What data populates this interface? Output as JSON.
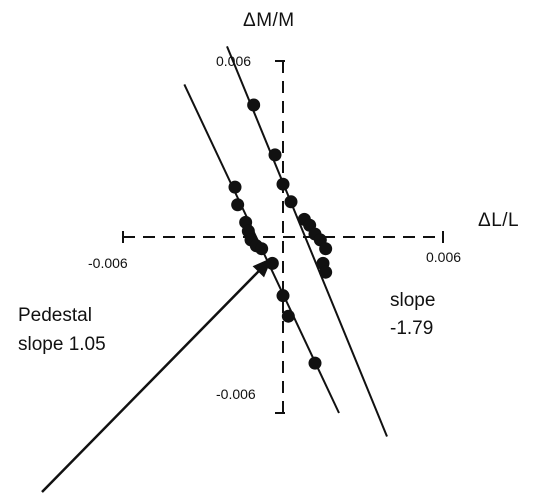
{
  "chart_data": {
    "type": "scatter",
    "xlabel": "ΔL/L",
    "ylabel": "ΔM/M",
    "xlim": [
      -0.006,
      0.006
    ],
    "ylim": [
      -0.006,
      0.006
    ],
    "x_ticks": [
      "-0.006",
      "0.006"
    ],
    "y_ticks": [
      "0.006",
      "-0.006"
    ],
    "grid": false,
    "axes_style": "dashed, crossing at origin",
    "series": [
      {
        "fit_slope": -1.79,
        "points": [
          {
            "x": -0.0011,
            "y": 0.0045
          },
          {
            "x": -0.0003,
            "y": 0.0028
          },
          {
            "x": 0.0,
            "y": 0.0018
          },
          {
            "x": 0.0003,
            "y": 0.0012
          },
          {
            "x": 0.0008,
            "y": 0.0006
          },
          {
            "x": 0.001,
            "y": 0.0004
          },
          {
            "x": 0.0012,
            "y": 0.0001
          },
          {
            "x": 0.0014,
            "y": -0.0001
          },
          {
            "x": 0.0016,
            "y": -0.0004
          },
          {
            "x": 0.0015,
            "y": -0.0009
          },
          {
            "x": 0.0016,
            "y": -0.0012
          }
        ],
        "fit_line": [
          {
            "x": -0.0021,
            "y": 0.0065
          },
          {
            "x": 0.0039,
            "y": -0.0068
          }
        ]
      },
      {
        "fit_slope": 1.05,
        "points": [
          {
            "x": -0.0018,
            "y": 0.0017
          },
          {
            "x": -0.0017,
            "y": 0.0011
          },
          {
            "x": -0.0014,
            "y": 0.0005
          },
          {
            "x": -0.0013,
            "y": 0.0002
          },
          {
            "x": -0.0012,
            "y": -0.0001
          },
          {
            "x": -0.001,
            "y": -0.0003
          },
          {
            "x": -0.0008,
            "y": -0.0004
          },
          {
            "x": -0.0004,
            "y": -0.0009
          },
          {
            "x": 0.0,
            "y": -0.002
          },
          {
            "x": 0.0002,
            "y": -0.0027
          },
          {
            "x": 0.0012,
            "y": -0.0043
          }
        ],
        "fit_line": [
          {
            "x": -0.0037,
            "y": 0.0052
          },
          {
            "x": 0.0021,
            "y": -0.006
          }
        ]
      }
    ],
    "annotations": [
      {
        "id": "pedestal",
        "lines": [
          "Pedestal",
          "slope  1.05"
        ],
        "arrow_to": {
          "x": -0.0004,
          "y": -0.0007
        }
      },
      {
        "id": "slope",
        "lines": [
          "slope",
          "-1.79"
        ]
      }
    ]
  }
}
